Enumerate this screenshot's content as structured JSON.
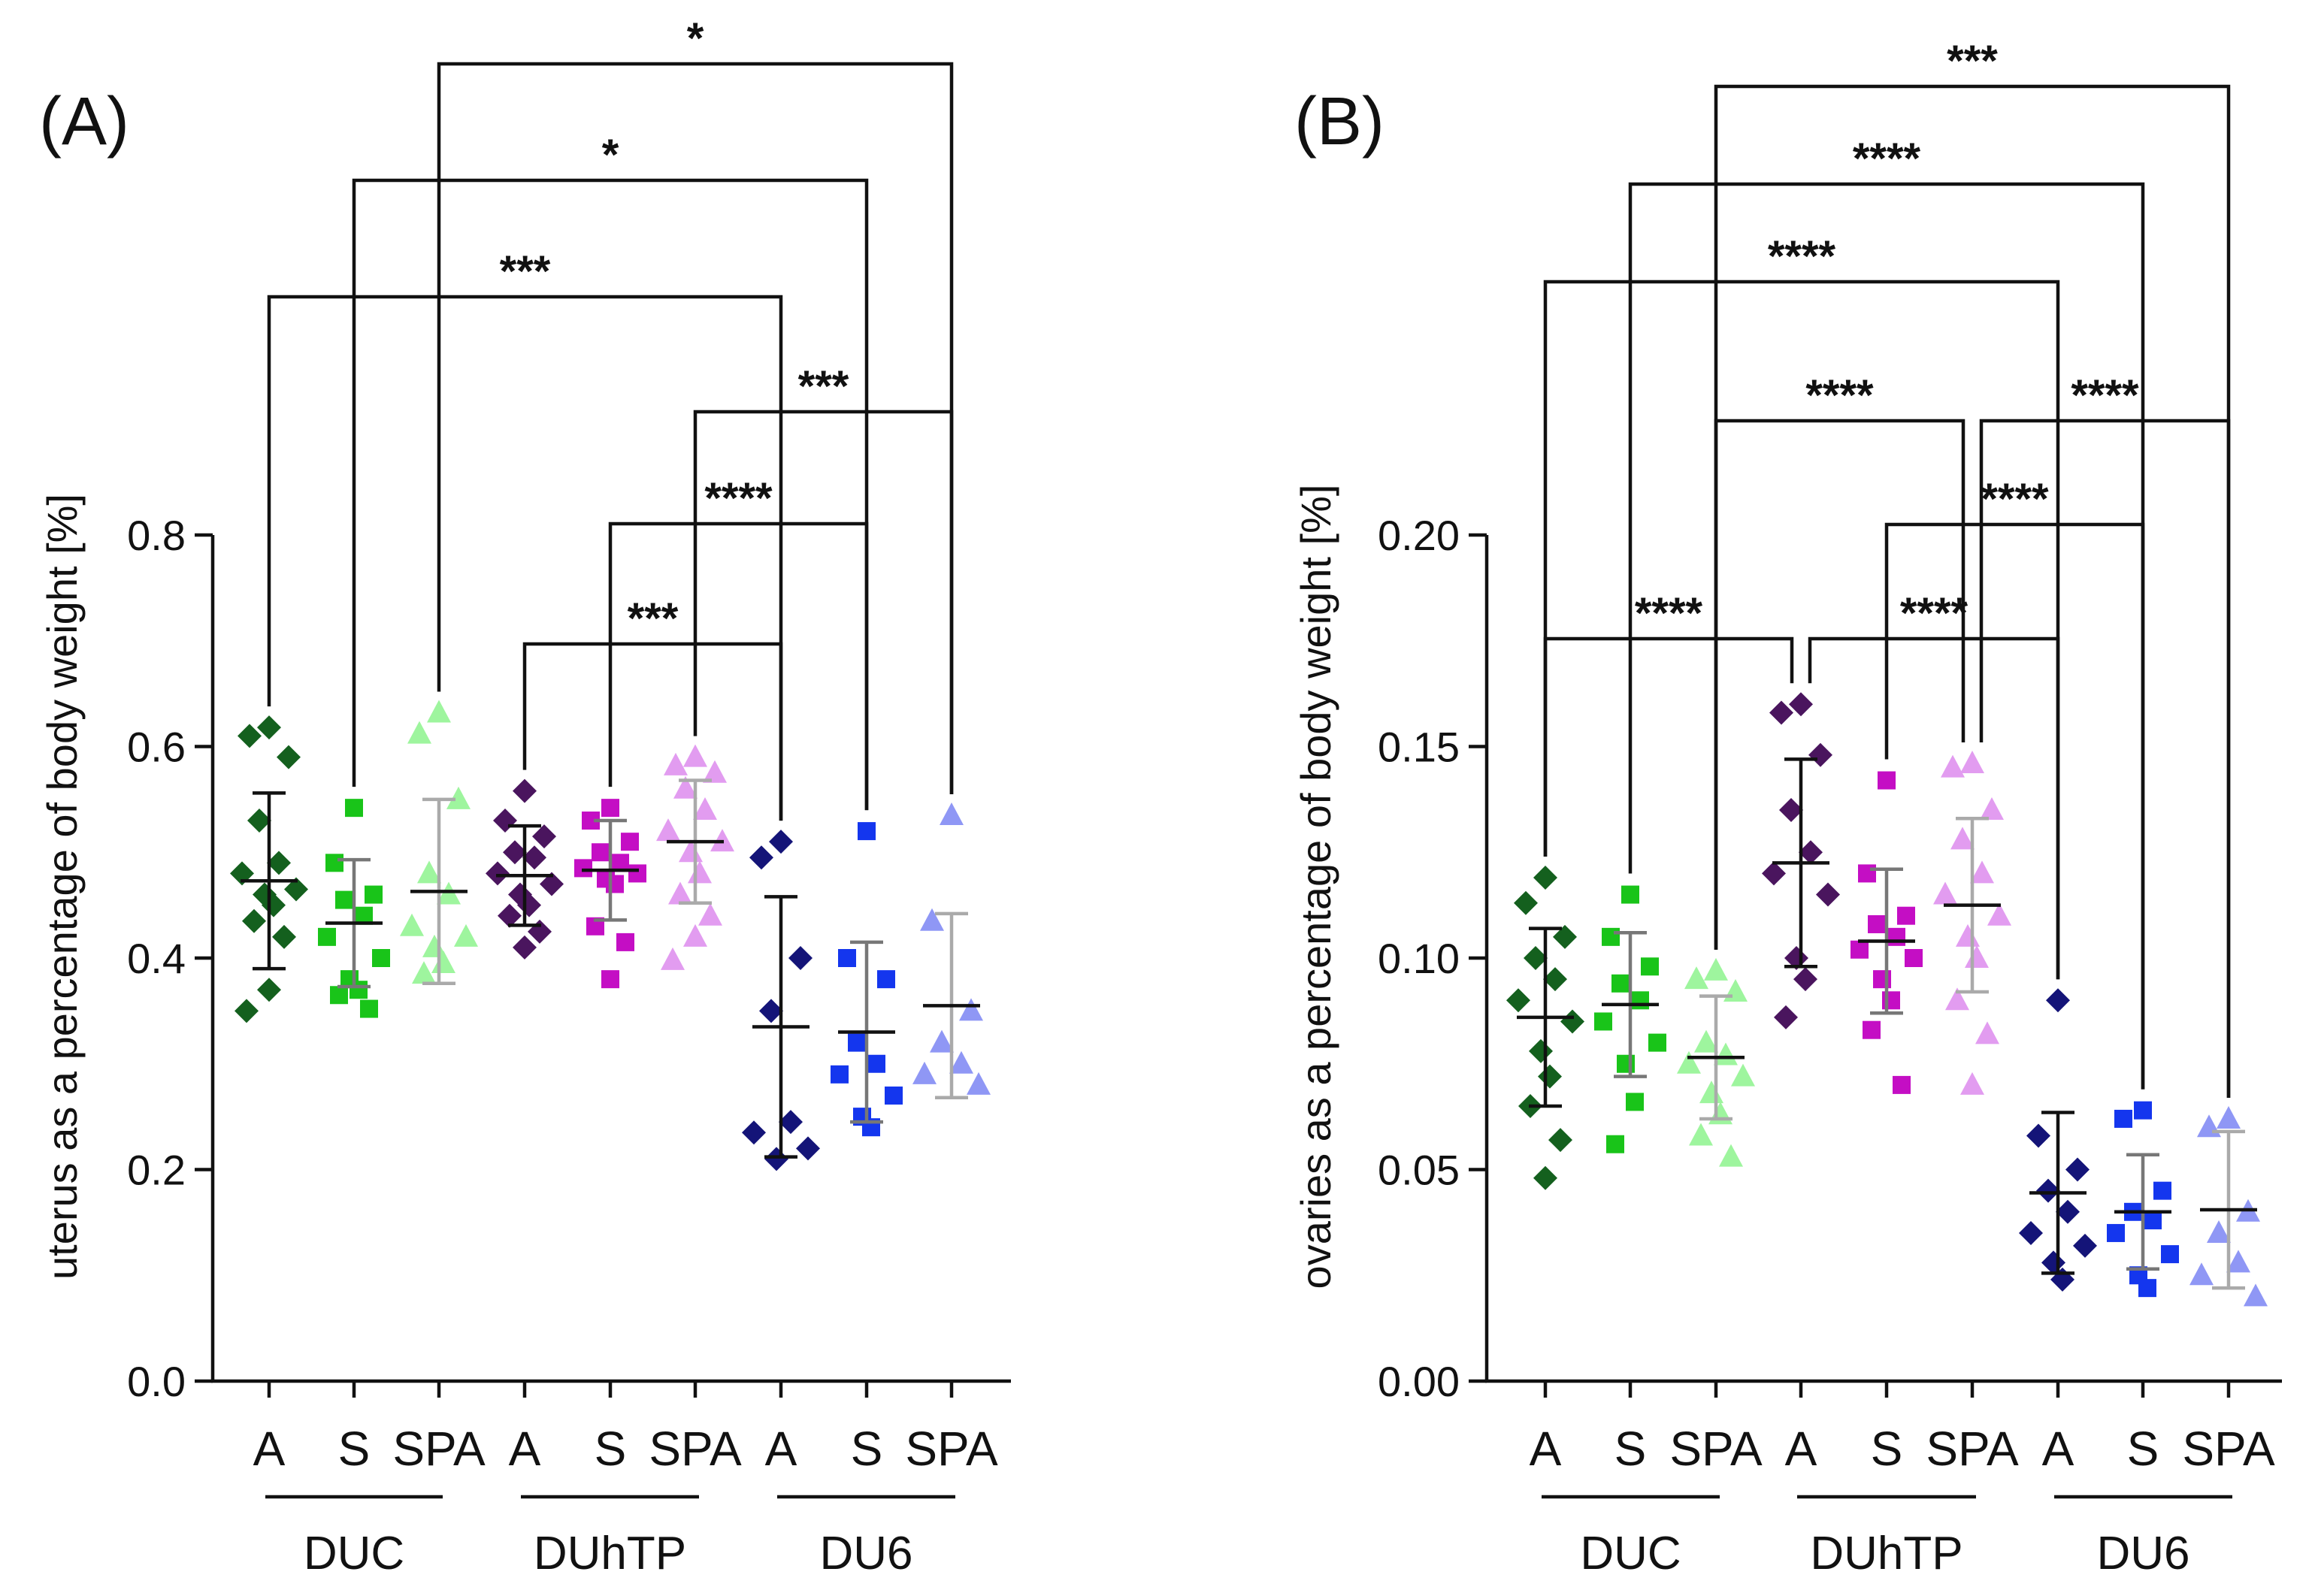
{
  "chart_data": [
    {
      "panel": "(A)",
      "type": "scatter",
      "ylabel": "uterus as a percentage of body weight [%]",
      "ylim": [
        0,
        0.8
      ],
      "yticks": [
        "0.0",
        "0.2",
        "0.4",
        "0.6",
        "0.8"
      ],
      "categories": [
        "A",
        "S",
        "SPA",
        "A",
        "S",
        "SPA",
        "A",
        "S",
        "SPA"
      ],
      "groups": [
        "DUC",
        "DUhTP",
        "DU6"
      ],
      "colors": [
        "#14601e",
        "#19c419",
        "#9ef59e",
        "#4a155e",
        "#c40ec4",
        "#e29cf0",
        "#141478",
        "#1436ee",
        "#8f97f5"
      ],
      "markers": [
        "diamond",
        "square",
        "triangle",
        "diamond",
        "square",
        "triangle",
        "diamond",
        "square",
        "triangle"
      ],
      "summary_colors": [
        "#111111",
        "#777777",
        "#aaaaaa",
        "#111111",
        "#777777",
        "#aaaaaa",
        "#111111",
        "#777777",
        "#aaaaaa"
      ],
      "means": [
        0.473,
        0.433,
        0.463,
        0.478,
        0.483,
        0.51,
        0.335,
        0.33,
        0.355
      ],
      "sd": [
        0.083,
        0.06,
        0.087,
        0.047,
        0.047,
        0.058,
        0.123,
        0.085,
        0.087
      ],
      "points": [
        [
          0.618,
          0.61,
          0.59,
          0.53,
          0.49,
          0.48,
          0.465,
          0.46,
          0.45,
          0.435,
          0.42,
          0.37,
          0.35
        ],
        [
          0.542,
          0.49,
          0.46,
          0.455,
          0.44,
          0.42,
          0.4,
          0.38,
          0.37,
          0.365,
          0.352
        ],
        [
          0.632,
          0.612,
          0.55,
          0.48,
          0.46,
          0.43,
          0.42,
          0.41,
          0.395,
          0.385
        ],
        [
          0.558,
          0.53,
          0.515,
          0.5,
          0.495,
          0.48,
          0.47,
          0.46,
          0.45,
          0.44,
          0.425,
          0.41
        ],
        [
          0.542,
          0.53,
          0.51,
          0.5,
          0.49,
          0.485,
          0.48,
          0.475,
          0.47,
          0.43,
          0.415,
          0.38
        ],
        [
          0.59,
          0.582,
          0.575,
          0.56,
          0.54,
          0.52,
          0.51,
          0.5,
          0.48,
          0.46,
          0.44,
          0.42,
          0.398
        ],
        [
          0.51,
          0.495,
          0.4,
          0.35,
          0.245,
          0.235,
          0.22,
          0.21
        ],
        [
          0.52,
          0.4,
          0.38,
          0.32,
          0.3,
          0.29,
          0.27,
          0.25,
          0.24
        ],
        [
          0.535,
          0.435,
          0.35,
          0.32,
          0.3,
          0.29,
          0.28
        ]
      ],
      "comparisons": [
        {
          "from": 2,
          "to": 8,
          "label": "*"
        },
        {
          "from": 1,
          "to": 7,
          "label": "*"
        },
        {
          "from": 0,
          "to": 6,
          "label": "***"
        },
        {
          "from": 5,
          "to": 8,
          "label": "***"
        },
        {
          "from": 4,
          "to": 7,
          "label": "****"
        },
        {
          "from": 3,
          "to": 6,
          "label": "***"
        }
      ]
    },
    {
      "panel": "(B)",
      "type": "scatter",
      "ylabel": "ovaries as a percentage of body weight [%]",
      "ylim": [
        0,
        0.2
      ],
      "yticks": [
        "0.00",
        "0.05",
        "0.10",
        "0.15",
        "0.20"
      ],
      "categories": [
        "A",
        "S",
        "SPA",
        "A",
        "S",
        "SPA",
        "A",
        "S",
        "SPA"
      ],
      "groups": [
        "DUC",
        "DUhTP",
        "DU6"
      ],
      "colors": [
        "#14601e",
        "#19c419",
        "#9ef59e",
        "#4a155e",
        "#c40ec4",
        "#e29cf0",
        "#141478",
        "#1436ee",
        "#8f97f5"
      ],
      "markers": [
        "diamond",
        "square",
        "triangle",
        "diamond",
        "square",
        "triangle",
        "diamond",
        "square",
        "triangle"
      ],
      "summary_colors": [
        "#111111",
        "#777777",
        "#aaaaaa",
        "#111111",
        "#777777",
        "#aaaaaa",
        "#111111",
        "#777777",
        "#aaaaaa"
      ],
      "means": [
        0.086,
        0.089,
        0.0765,
        0.1225,
        0.104,
        0.1125,
        0.0445,
        0.04,
        0.0405
      ],
      "sd": [
        0.021,
        0.017,
        0.0145,
        0.0245,
        0.017,
        0.0205,
        0.019,
        0.0135,
        0.0185
      ],
      "points": [
        [
          0.119,
          0.113,
          0.105,
          0.1,
          0.095,
          0.09,
          0.085,
          0.078,
          0.072,
          0.065,
          0.057,
          0.048
        ],
        [
          0.115,
          0.105,
          0.098,
          0.094,
          0.09,
          0.085,
          0.08,
          0.075,
          0.066,
          0.056
        ],
        [
          0.097,
          0.095,
          0.092,
          0.08,
          0.077,
          0.075,
          0.072,
          0.068,
          0.063,
          0.058,
          0.053
        ],
        [
          0.16,
          0.158,
          0.148,
          0.135,
          0.125,
          0.12,
          0.115,
          0.1,
          0.095,
          0.086
        ],
        [
          0.142,
          0.12,
          0.11,
          0.108,
          0.105,
          0.102,
          0.1,
          0.095,
          0.09,
          0.083,
          0.07
        ],
        [
          0.146,
          0.145,
          0.135,
          0.128,
          0.12,
          0.115,
          0.11,
          0.105,
          0.1,
          0.09,
          0.082,
          0.07
        ],
        [
          0.09,
          0.058,
          0.05,
          0.045,
          0.04,
          0.035,
          0.032,
          0.028,
          0.024
        ],
        [
          0.064,
          0.062,
          0.045,
          0.04,
          0.038,
          0.035,
          0.03,
          0.025,
          0.022
        ],
        [
          0.062,
          0.06,
          0.04,
          0.035,
          0.028,
          0.025,
          0.02
        ]
      ],
      "comparisons": [
        {
          "from": 2,
          "to": 8,
          "label": "***"
        },
        {
          "from": 1,
          "to": 7,
          "label": "****"
        },
        {
          "from": 0,
          "to": 6,
          "label": "****"
        },
        {
          "from": 2,
          "to": 5,
          "label": "****"
        },
        {
          "from": 5,
          "to": 8,
          "label": "****"
        },
        {
          "from": 4,
          "to": 7,
          "label": "****"
        },
        {
          "from": 0,
          "to": 3,
          "label": "****"
        },
        {
          "from": 3,
          "to": 6,
          "label": "****"
        }
      ]
    }
  ]
}
